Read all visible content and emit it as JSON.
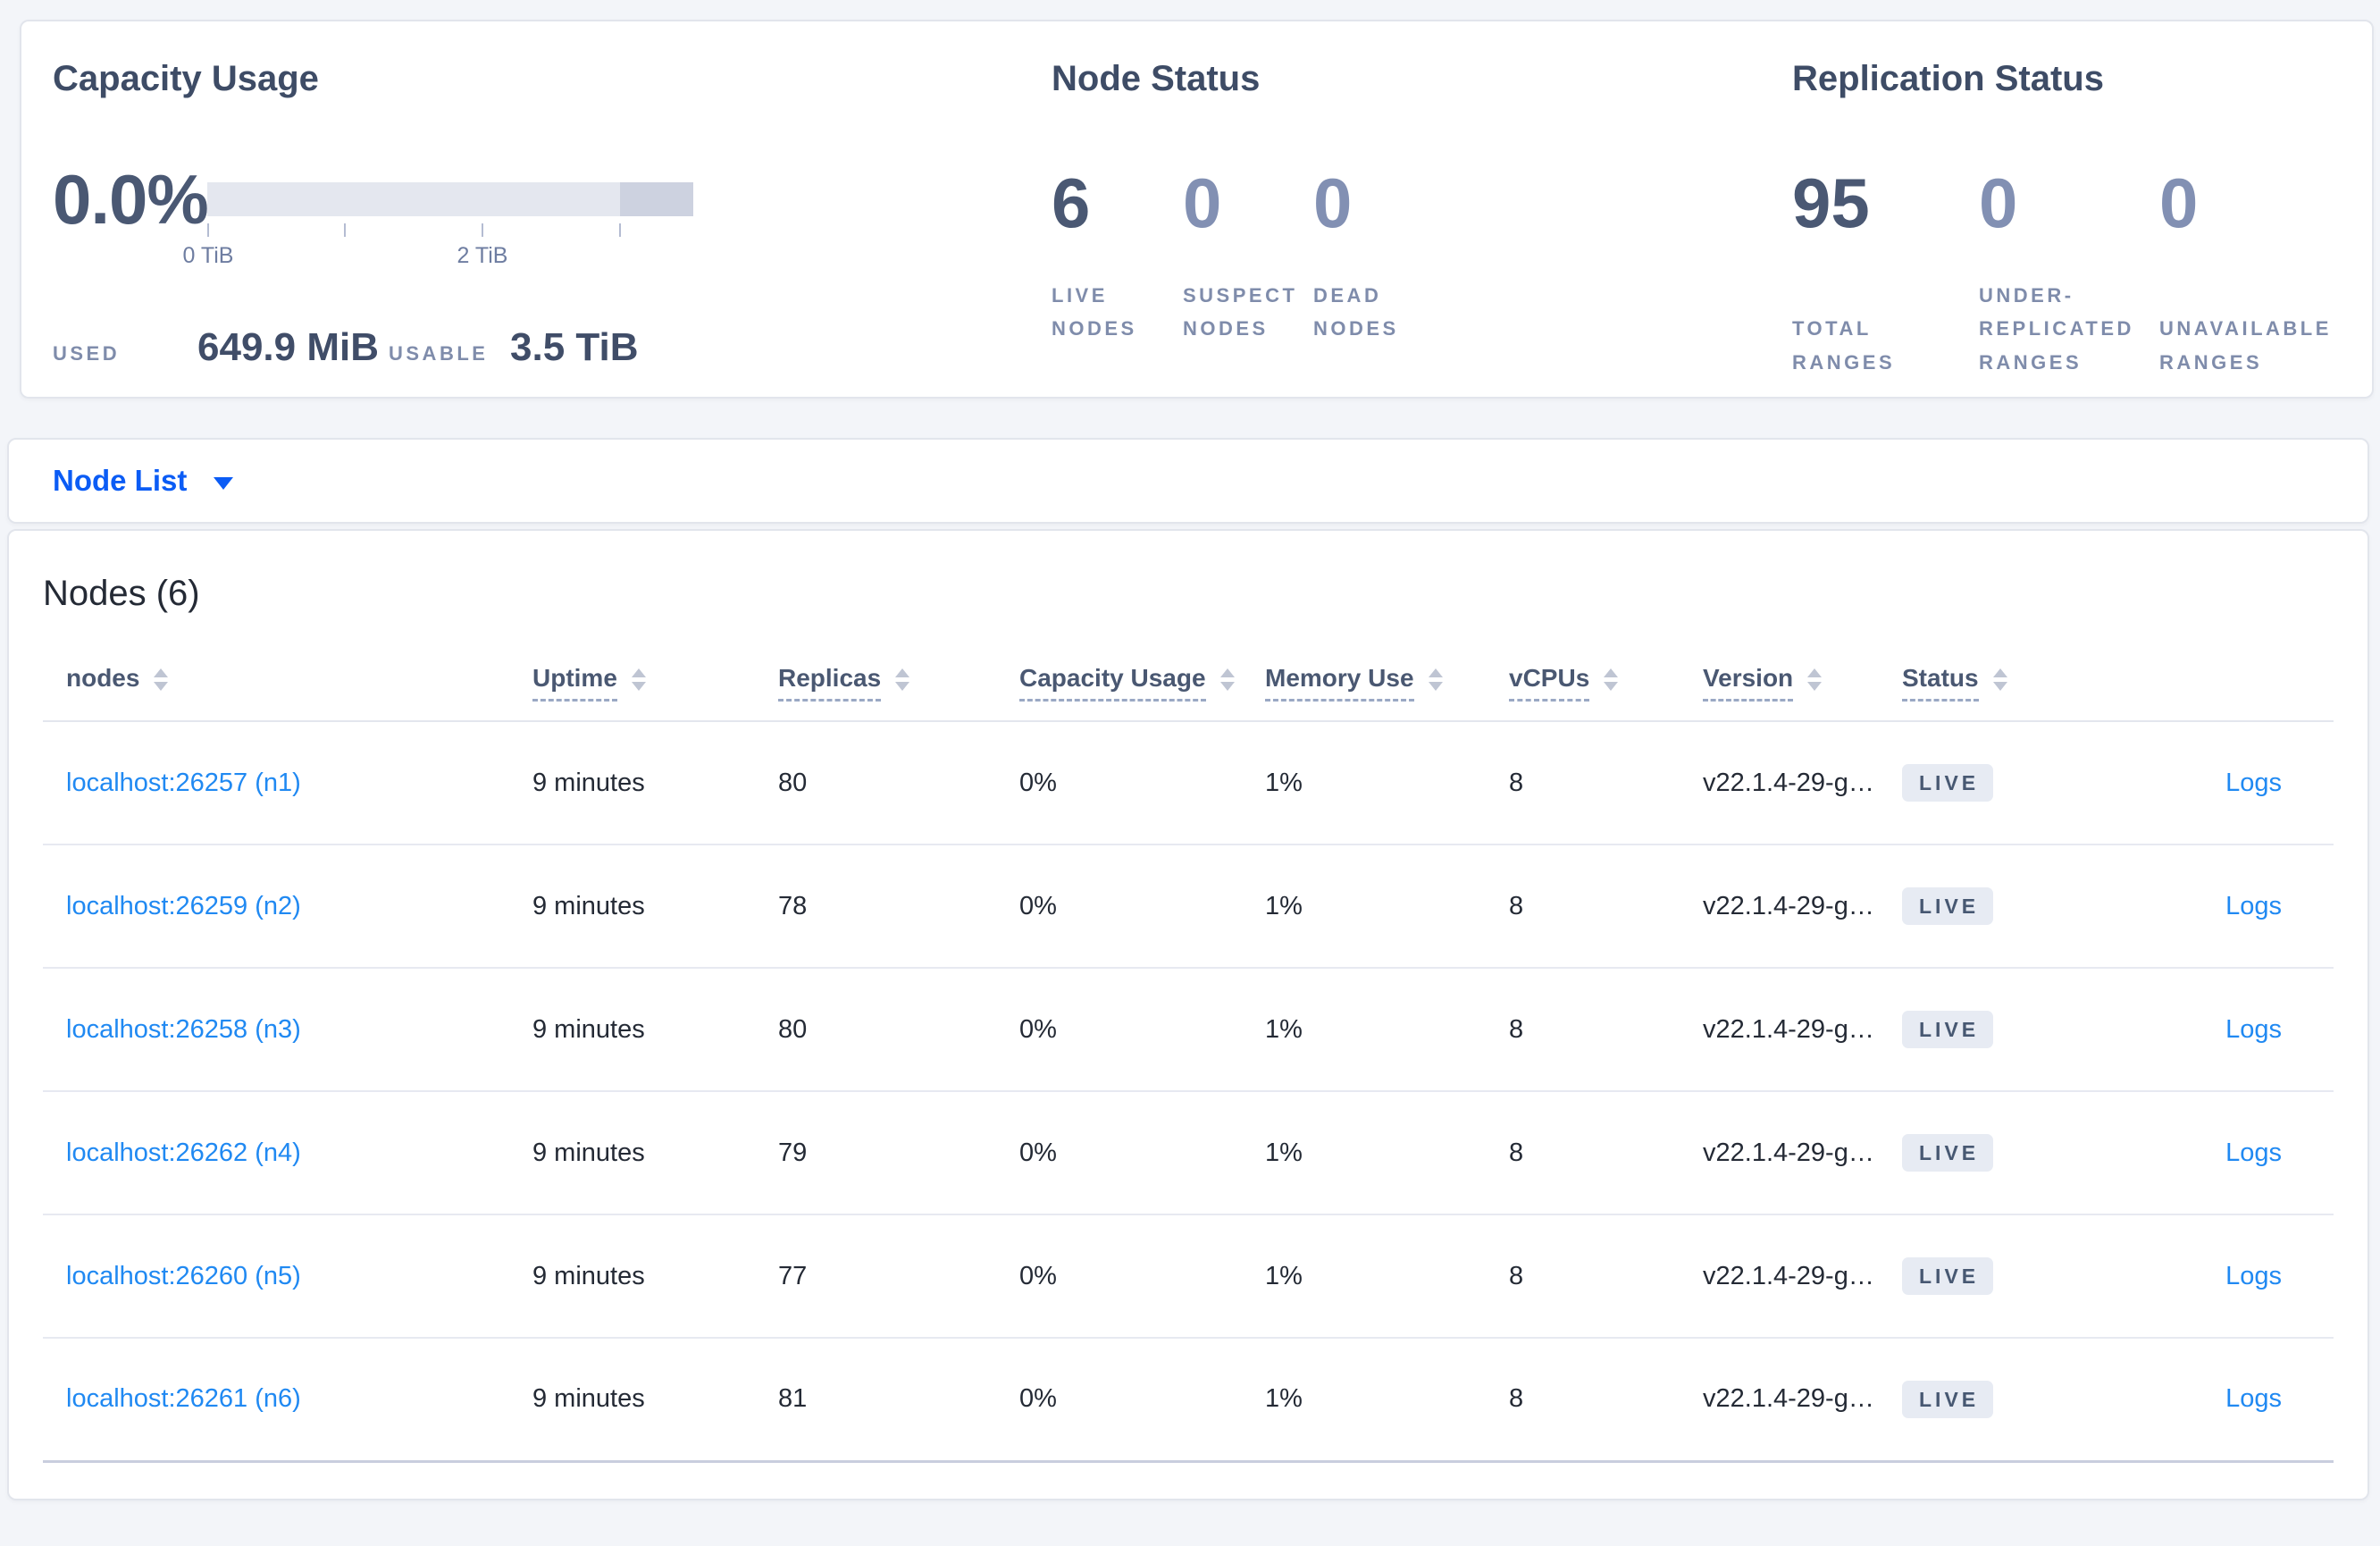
{
  "summary": {
    "capacity_usage": {
      "title": "Capacity Usage",
      "percent": "0.0%",
      "tick_labels": [
        "0 TiB",
        "2 TiB"
      ],
      "used_label": "USED",
      "used_value": "649.9 MiB",
      "usable_label": "USABLE",
      "usable_value": "3.5 TiB"
    },
    "node_status": {
      "title": "Node Status",
      "live": {
        "value": "6",
        "label": "LIVE NODES"
      },
      "suspect": {
        "value": "0",
        "label": "SUSPECT NODES"
      },
      "dead": {
        "value": "0",
        "label": "DEAD NODES"
      }
    },
    "replication_status": {
      "title": "Replication Status",
      "total": {
        "value": "95",
        "label": "TOTAL RANGES"
      },
      "under_replicated": {
        "value": "0",
        "label": "UNDER-REPLICATED RANGES"
      },
      "unavailable": {
        "value": "0",
        "label": "UNAVAILABLE RANGES"
      }
    }
  },
  "node_list_selector": {
    "label": "Node List"
  },
  "nodes_table": {
    "title": "Nodes (6)",
    "logs_label": "Logs",
    "columns": {
      "nodes": "nodes",
      "uptime": "Uptime",
      "replicas": "Replicas",
      "capacity": "Capacity Usage",
      "memory": "Memory Use",
      "vcpus": "vCPUs",
      "version": "Version",
      "status": "Status"
    },
    "rows": [
      {
        "name": "localhost:26257 (n1)",
        "uptime": "9 minutes",
        "replicas": "80",
        "capacity": "0%",
        "memory": "1%",
        "vcpus": "8",
        "version": "v22.1.4-29-g…",
        "status": "LIVE"
      },
      {
        "name": "localhost:26259 (n2)",
        "uptime": "9 minutes",
        "replicas": "78",
        "capacity": "0%",
        "memory": "1%",
        "vcpus": "8",
        "version": "v22.1.4-29-g…",
        "status": "LIVE"
      },
      {
        "name": "localhost:26258 (n3)",
        "uptime": "9 minutes",
        "replicas": "80",
        "capacity": "0%",
        "memory": "1%",
        "vcpus": "8",
        "version": "v22.1.4-29-g…",
        "status": "LIVE"
      },
      {
        "name": "localhost:26262 (n4)",
        "uptime": "9 minutes",
        "replicas": "79",
        "capacity": "0%",
        "memory": "1%",
        "vcpus": "8",
        "version": "v22.1.4-29-g…",
        "status": "LIVE"
      },
      {
        "name": "localhost:26260 (n5)",
        "uptime": "9 minutes",
        "replicas": "77",
        "capacity": "0%",
        "memory": "1%",
        "vcpus": "8",
        "version": "v22.1.4-29-g…",
        "status": "LIVE"
      },
      {
        "name": "localhost:26261 (n6)",
        "uptime": "9 minutes",
        "replicas": "81",
        "capacity": "0%",
        "memory": "1%",
        "vcpus": "8",
        "version": "v22.1.4-29-g…",
        "status": "LIVE"
      }
    ]
  },
  "colors": {
    "accent_blue": "#0b5cf5",
    "link_blue": "#2089f2",
    "badge_bg": "#e7ebf3",
    "badge_text": "#475872",
    "stat_dark": "#4a5873",
    "stat_muted": "#8290b3",
    "bar_light": "#e4e7ef",
    "bar_dark": "#cdd2e0",
    "page_bg": "#f3f5f9"
  }
}
